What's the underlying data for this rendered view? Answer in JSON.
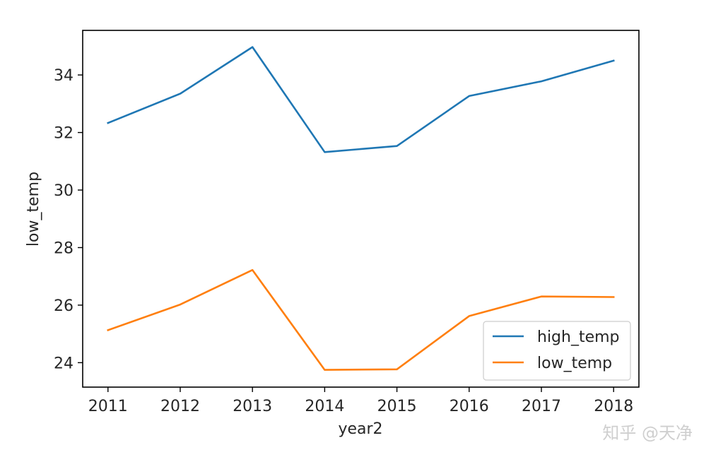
{
  "chart_data": {
    "type": "line",
    "xlabel": "year2",
    "ylabel": "low_temp",
    "x": [
      2011,
      2012,
      2013,
      2014,
      2015,
      2016,
      2017,
      2018
    ],
    "xlim": [
      2010.65,
      2018.35
    ],
    "ylim": [
      23.15,
      35.55
    ],
    "yticks": [
      24,
      26,
      28,
      30,
      32,
      34
    ],
    "xticks": [
      2011,
      2012,
      2013,
      2014,
      2015,
      2016,
      2017,
      2018
    ],
    "grid": false,
    "legend_position": "lower right",
    "series": [
      {
        "name": "high_temp",
        "color": "#1f77b4",
        "values": [
          32.33,
          33.35,
          34.97,
          31.32,
          31.53,
          33.27,
          33.78,
          34.5
        ]
      },
      {
        "name": "low_temp",
        "color": "#ff7f0e",
        "values": [
          25.13,
          26.02,
          27.22,
          23.75,
          23.77,
          25.62,
          26.3,
          26.28
        ]
      }
    ]
  },
  "watermark": "知乎 @天净"
}
